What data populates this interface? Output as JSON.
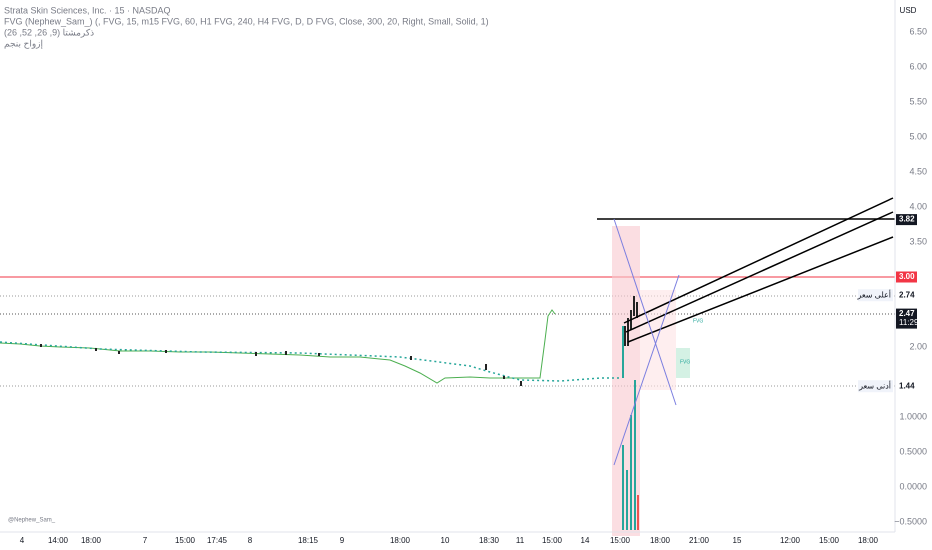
{
  "header": {
    "symbol": "Strata Skin Sciences, Inc. · 15 · NASDAQ",
    "indicator": "FVG (Nephew_Sam_) (, FVG, 15, m15 FVG, 60, H1 FVG, 240, H4 FVG, D, D FVG, Close, 300, 20, Right, Small, Solid, 1)",
    "ichimoku": "ذكرمشتا (9, 26, 52, 26)",
    "volume": "إزواح بنجم"
  },
  "currency": "USD",
  "price_axis": {
    "ticks": [
      {
        "value": 6.5,
        "label": "6.50"
      },
      {
        "value": 6,
        "label": "6.00"
      },
      {
        "value": 5.5,
        "label": "5.50"
      },
      {
        "value": 5,
        "label": "5.00"
      },
      {
        "value": 4.5,
        "label": "4.50"
      },
      {
        "value": 4,
        "label": "4.00"
      },
      {
        "value": 3.5,
        "label": "3.50"
      },
      {
        "value": 2,
        "label": "2.00"
      },
      {
        "value": 1,
        "label": "1.0000"
      },
      {
        "value": 0.5,
        "label": "0.5000"
      },
      {
        "value": 0,
        "label": "0.0000"
      },
      {
        "value": -0.5,
        "label": "−0.5000"
      }
    ]
  },
  "price_tags": [
    {
      "value": 3.82,
      "label": "3.82",
      "kind": "dark"
    },
    {
      "value": 3,
      "label": "3.00",
      "kind": "red"
    },
    {
      "value": 2.74,
      "label": "2.74",
      "kind": "light",
      "caption": "أعلى سعر"
    },
    {
      "value": 2.47,
      "label": "2.47",
      "kind": "dark",
      "countdown": "11:29"
    },
    {
      "value": 1.44,
      "label": "1.44",
      "kind": "light",
      "caption": "أدنى سعر"
    }
  ],
  "time_axis": [
    "4",
    "14:00",
    "18:00",
    "7",
    "15:00",
    "17:45",
    "8",
    "18:15",
    "9",
    "18:00",
    "10",
    "18:30",
    "11",
    "15:00",
    "14",
    "15:00",
    "18:00",
    "21:00",
    "15",
    "12:00",
    "15:00",
    "18:00"
  ],
  "fvg_label": "FVG",
  "watermark": "@Nephew_Sam_"
}
